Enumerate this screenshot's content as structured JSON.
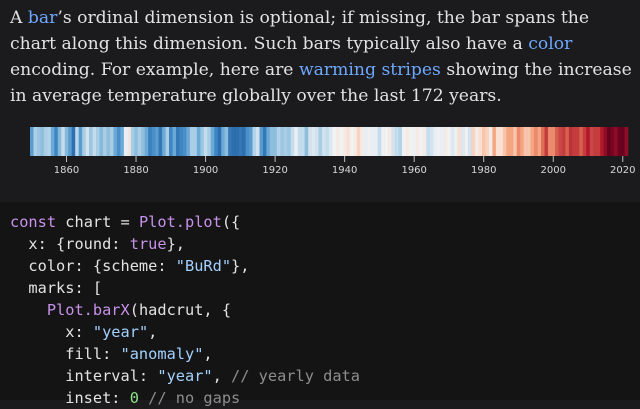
{
  "prose": {
    "s1": "A ",
    "bar_link": "bar",
    "s2": "’s ordinal dimension is optional; if missing, the bar spans the chart along this dimension. Such bars typically also have a ",
    "color_link": "color",
    "s3": " encoding. For example, here are ",
    "stripes_link": "warming stripes",
    "s4": " showing the increase in average temperature globally over the last 172 years."
  },
  "chart_data": {
    "type": "heatmap",
    "x_ticks": [
      "1860",
      "1880",
      "1900",
      "1920",
      "1940",
      "1960",
      "1980",
      "2000",
      "2020"
    ],
    "x_range": [
      1850,
      2021
    ],
    "color_scheme": "BuRd",
    "stripes": [
      {
        "year": 1850,
        "color": "#5a9cd0"
      },
      {
        "year": 1851,
        "color": "#acd0e6"
      },
      {
        "year": 1852,
        "color": "#9cc6e2"
      },
      {
        "year": 1853,
        "color": "#8fbedd"
      },
      {
        "year": 1854,
        "color": "#a8cde5"
      },
      {
        "year": 1855,
        "color": "#b3d3e8"
      },
      {
        "year": 1856,
        "color": "#6ba9d7"
      },
      {
        "year": 1857,
        "color": "#3e86c2"
      },
      {
        "year": 1858,
        "color": "#86b9dc"
      },
      {
        "year": 1859,
        "color": "#c4dcec"
      },
      {
        "year": 1860,
        "color": "#86b9dc"
      },
      {
        "year": 1861,
        "color": "#5a9cd0"
      },
      {
        "year": 1862,
        "color": "#2e6fb0"
      },
      {
        "year": 1863,
        "color": "#b9d7ea"
      },
      {
        "year": 1864,
        "color": "#5a9cd0"
      },
      {
        "year": 1865,
        "color": "#a8cde5"
      },
      {
        "year": 1866,
        "color": "#d2e3ef"
      },
      {
        "year": 1867,
        "color": "#9cc6e2"
      },
      {
        "year": 1868,
        "color": "#c4dcec"
      },
      {
        "year": 1869,
        "color": "#a8cde5"
      },
      {
        "year": 1870,
        "color": "#86b9dc"
      },
      {
        "year": 1871,
        "color": "#a8cde5"
      },
      {
        "year": 1872,
        "color": "#8fbedd"
      },
      {
        "year": 1873,
        "color": "#a8cde5"
      },
      {
        "year": 1874,
        "color": "#6ba9d7"
      },
      {
        "year": 1875,
        "color": "#4a8fc8"
      },
      {
        "year": 1876,
        "color": "#6ba9d7"
      },
      {
        "year": 1877,
        "color": "#e8eef3"
      },
      {
        "year": 1878,
        "color": "#f0e6e0"
      },
      {
        "year": 1879,
        "color": "#a8cde5"
      },
      {
        "year": 1880,
        "color": "#8fbedd"
      },
      {
        "year": 1881,
        "color": "#a8cde5"
      },
      {
        "year": 1882,
        "color": "#8fbedd"
      },
      {
        "year": 1883,
        "color": "#6ba9d7"
      },
      {
        "year": 1884,
        "color": "#3a7fbe"
      },
      {
        "year": 1885,
        "color": "#4a8fc8"
      },
      {
        "year": 1886,
        "color": "#5a9cd0"
      },
      {
        "year": 1887,
        "color": "#3578b8"
      },
      {
        "year": 1888,
        "color": "#6ba9d7"
      },
      {
        "year": 1889,
        "color": "#a8cde5"
      },
      {
        "year": 1890,
        "color": "#3e86c2"
      },
      {
        "year": 1891,
        "color": "#6ba9d7"
      },
      {
        "year": 1892,
        "color": "#3578b8"
      },
      {
        "year": 1893,
        "color": "#3e86c2"
      },
      {
        "year": 1894,
        "color": "#4a8fc8"
      },
      {
        "year": 1895,
        "color": "#6ba9d7"
      },
      {
        "year": 1896,
        "color": "#a8cde5"
      },
      {
        "year": 1897,
        "color": "#a8cde5"
      },
      {
        "year": 1898,
        "color": "#6ba9d7"
      },
      {
        "year": 1899,
        "color": "#9cc6e2"
      },
      {
        "year": 1900,
        "color": "#c4dcec"
      },
      {
        "year": 1901,
        "color": "#a8cde5"
      },
      {
        "year": 1902,
        "color": "#6ba9d7"
      },
      {
        "year": 1903,
        "color": "#3e86c2"
      },
      {
        "year": 1904,
        "color": "#2e6fb0"
      },
      {
        "year": 1905,
        "color": "#6ba9d7"
      },
      {
        "year": 1906,
        "color": "#8fbedd"
      },
      {
        "year": 1907,
        "color": "#3578b8"
      },
      {
        "year": 1908,
        "color": "#2e6fb0"
      },
      {
        "year": 1909,
        "color": "#2e6fb0"
      },
      {
        "year": 1910,
        "color": "#3578b8"
      },
      {
        "year": 1911,
        "color": "#2e6fb0"
      },
      {
        "year": 1912,
        "color": "#4a8fc8"
      },
      {
        "year": 1913,
        "color": "#5a9cd0"
      },
      {
        "year": 1914,
        "color": "#b3d3e8"
      },
      {
        "year": 1915,
        "color": "#d2e3ef"
      },
      {
        "year": 1916,
        "color": "#5a9cd0"
      },
      {
        "year": 1917,
        "color": "#3578b8"
      },
      {
        "year": 1918,
        "color": "#6ba9d7"
      },
      {
        "year": 1919,
        "color": "#8fbedd"
      },
      {
        "year": 1920,
        "color": "#8fbedd"
      },
      {
        "year": 1921,
        "color": "#b3d3e8"
      },
      {
        "year": 1922,
        "color": "#9cc6e2"
      },
      {
        "year": 1923,
        "color": "#a8cde5"
      },
      {
        "year": 1924,
        "color": "#9cc6e2"
      },
      {
        "year": 1925,
        "color": "#c4dcec"
      },
      {
        "year": 1926,
        "color": "#e8eef3"
      },
      {
        "year": 1927,
        "color": "#c4dcec"
      },
      {
        "year": 1928,
        "color": "#c4dcec"
      },
      {
        "year": 1929,
        "color": "#8fbedd"
      },
      {
        "year": 1930,
        "color": "#d2e3ef"
      },
      {
        "year": 1931,
        "color": "#dde8f0"
      },
      {
        "year": 1932,
        "color": "#d2e3ef"
      },
      {
        "year": 1933,
        "color": "#a8cde5"
      },
      {
        "year": 1934,
        "color": "#d2e3ef"
      },
      {
        "year": 1935,
        "color": "#c4dcec"
      },
      {
        "year": 1936,
        "color": "#dde8f0"
      },
      {
        "year": 1937,
        "color": "#f2f2f2"
      },
      {
        "year": 1938,
        "color": "#f5ebe6"
      },
      {
        "year": 1939,
        "color": "#f2f2f2"
      },
      {
        "year": 1940,
        "color": "#f5ebe6"
      },
      {
        "year": 1941,
        "color": "#f9e0d2"
      },
      {
        "year": 1942,
        "color": "#f2f2f2"
      },
      {
        "year": 1943,
        "color": "#f5ebe6"
      },
      {
        "year": 1944,
        "color": "#f9d3c0"
      },
      {
        "year": 1945,
        "color": "#f5ebe6"
      },
      {
        "year": 1946,
        "color": "#e8eef3"
      },
      {
        "year": 1947,
        "color": "#eef0f2"
      },
      {
        "year": 1948,
        "color": "#e8eef3"
      },
      {
        "year": 1949,
        "color": "#e8eef3"
      },
      {
        "year": 1950,
        "color": "#c4dcec"
      },
      {
        "year": 1951,
        "color": "#eef0f2"
      },
      {
        "year": 1952,
        "color": "#f2f2f2"
      },
      {
        "year": 1953,
        "color": "#f5ebe6"
      },
      {
        "year": 1954,
        "color": "#d2e3ef"
      },
      {
        "year": 1955,
        "color": "#c4dcec"
      },
      {
        "year": 1956,
        "color": "#b3d3e8"
      },
      {
        "year": 1957,
        "color": "#f2f2f2"
      },
      {
        "year": 1958,
        "color": "#f5ebe6"
      },
      {
        "year": 1959,
        "color": "#f2f2f2"
      },
      {
        "year": 1960,
        "color": "#eef0f2"
      },
      {
        "year": 1961,
        "color": "#f5ebe6"
      },
      {
        "year": 1962,
        "color": "#f2f2f2"
      },
      {
        "year": 1963,
        "color": "#f5ebe6"
      },
      {
        "year": 1964,
        "color": "#c4dcec"
      },
      {
        "year": 1965,
        "color": "#d2e3ef"
      },
      {
        "year": 1966,
        "color": "#e8eef3"
      },
      {
        "year": 1967,
        "color": "#eef0f2"
      },
      {
        "year": 1968,
        "color": "#e8eef3"
      },
      {
        "year": 1969,
        "color": "#f5ebe6"
      },
      {
        "year": 1970,
        "color": "#f2f2f2"
      },
      {
        "year": 1971,
        "color": "#dde8f0"
      },
      {
        "year": 1972,
        "color": "#eef0f2"
      },
      {
        "year": 1973,
        "color": "#f9e0d2"
      },
      {
        "year": 1974,
        "color": "#dde8f0"
      },
      {
        "year": 1975,
        "color": "#eef0f2"
      },
      {
        "year": 1976,
        "color": "#d2e3ef"
      },
      {
        "year": 1977,
        "color": "#f9d3c0"
      },
      {
        "year": 1978,
        "color": "#f5ebe6"
      },
      {
        "year": 1979,
        "color": "#f9e0d2"
      },
      {
        "year": 1980,
        "color": "#f8c4ab"
      },
      {
        "year": 1981,
        "color": "#f9d3c0"
      },
      {
        "year": 1982,
        "color": "#f5ebe6"
      },
      {
        "year": 1983,
        "color": "#f4a582"
      },
      {
        "year": 1984,
        "color": "#f9e0d2"
      },
      {
        "year": 1985,
        "color": "#f9e0d2"
      },
      {
        "year": 1986,
        "color": "#f8c4ab"
      },
      {
        "year": 1987,
        "color": "#f4a582"
      },
      {
        "year": 1988,
        "color": "#f4a582"
      },
      {
        "year": 1989,
        "color": "#f8c4ab"
      },
      {
        "year": 1990,
        "color": "#eb8a6d"
      },
      {
        "year": 1991,
        "color": "#f4a582"
      },
      {
        "year": 1992,
        "color": "#f8c4ab"
      },
      {
        "year": 1993,
        "color": "#f8c4ab"
      },
      {
        "year": 1994,
        "color": "#f4a582"
      },
      {
        "year": 1995,
        "color": "#eb8a6d"
      },
      {
        "year": 1996,
        "color": "#f4a582"
      },
      {
        "year": 1997,
        "color": "#de6f59"
      },
      {
        "year": 1998,
        "color": "#c43c3c"
      },
      {
        "year": 1999,
        "color": "#eb8a6d"
      },
      {
        "year": 2000,
        "color": "#eb8a6d"
      },
      {
        "year": 2001,
        "color": "#d6604d"
      },
      {
        "year": 2002,
        "color": "#c9474a"
      },
      {
        "year": 2003,
        "color": "#c43c3c"
      },
      {
        "year": 2004,
        "color": "#d6604d"
      },
      {
        "year": 2005,
        "color": "#b8323c"
      },
      {
        "year": 2006,
        "color": "#c43c3c"
      },
      {
        "year": 2007,
        "color": "#c43c3c"
      },
      {
        "year": 2008,
        "color": "#d6604d"
      },
      {
        "year": 2009,
        "color": "#c43c3c"
      },
      {
        "year": 2010,
        "color": "#b2182b"
      },
      {
        "year": 2011,
        "color": "#c9474a"
      },
      {
        "year": 2012,
        "color": "#c43c3c"
      },
      {
        "year": 2013,
        "color": "#c43c3c"
      },
      {
        "year": 2014,
        "color": "#b2182b"
      },
      {
        "year": 2015,
        "color": "#8c0d25"
      },
      {
        "year": 2016,
        "color": "#67001f"
      },
      {
        "year": 2017,
        "color": "#7a0522"
      },
      {
        "year": 2018,
        "color": "#8c0d25"
      },
      {
        "year": 2019,
        "color": "#6f0220"
      },
      {
        "year": 2020,
        "color": "#67001f"
      },
      {
        "year": 2021,
        "color": "#8c0d25"
      }
    ]
  },
  "code": {
    "l1": {
      "kw": "const",
      "t1": " chart = ",
      "fn": "Plot.plot",
      "t2": "({"
    },
    "l2": {
      "t1": "  x: {round: ",
      "kw": "true",
      "t2": "},"
    },
    "l3": {
      "t1": "  color: {scheme: ",
      "str": "\"BuRd\"",
      "t2": "},"
    },
    "l4": {
      "t1": "  marks: ["
    },
    "l5": {
      "t1": "    ",
      "fn": "Plot.barX",
      "t2": "(hadcrut, {"
    },
    "l6": {
      "t1": "      x: ",
      "str": "\"year\"",
      "t2": ","
    },
    "l7": {
      "t1": "      fill: ",
      "str": "\"anomaly\"",
      "t2": ","
    },
    "l8": {
      "t1": "      interval: ",
      "str": "\"year\"",
      "t2": ", ",
      "cm": "// yearly data"
    },
    "l9": {
      "t1": "      inset: ",
      "num": "0",
      "t2": " ",
      "cm": "// no gaps"
    }
  }
}
